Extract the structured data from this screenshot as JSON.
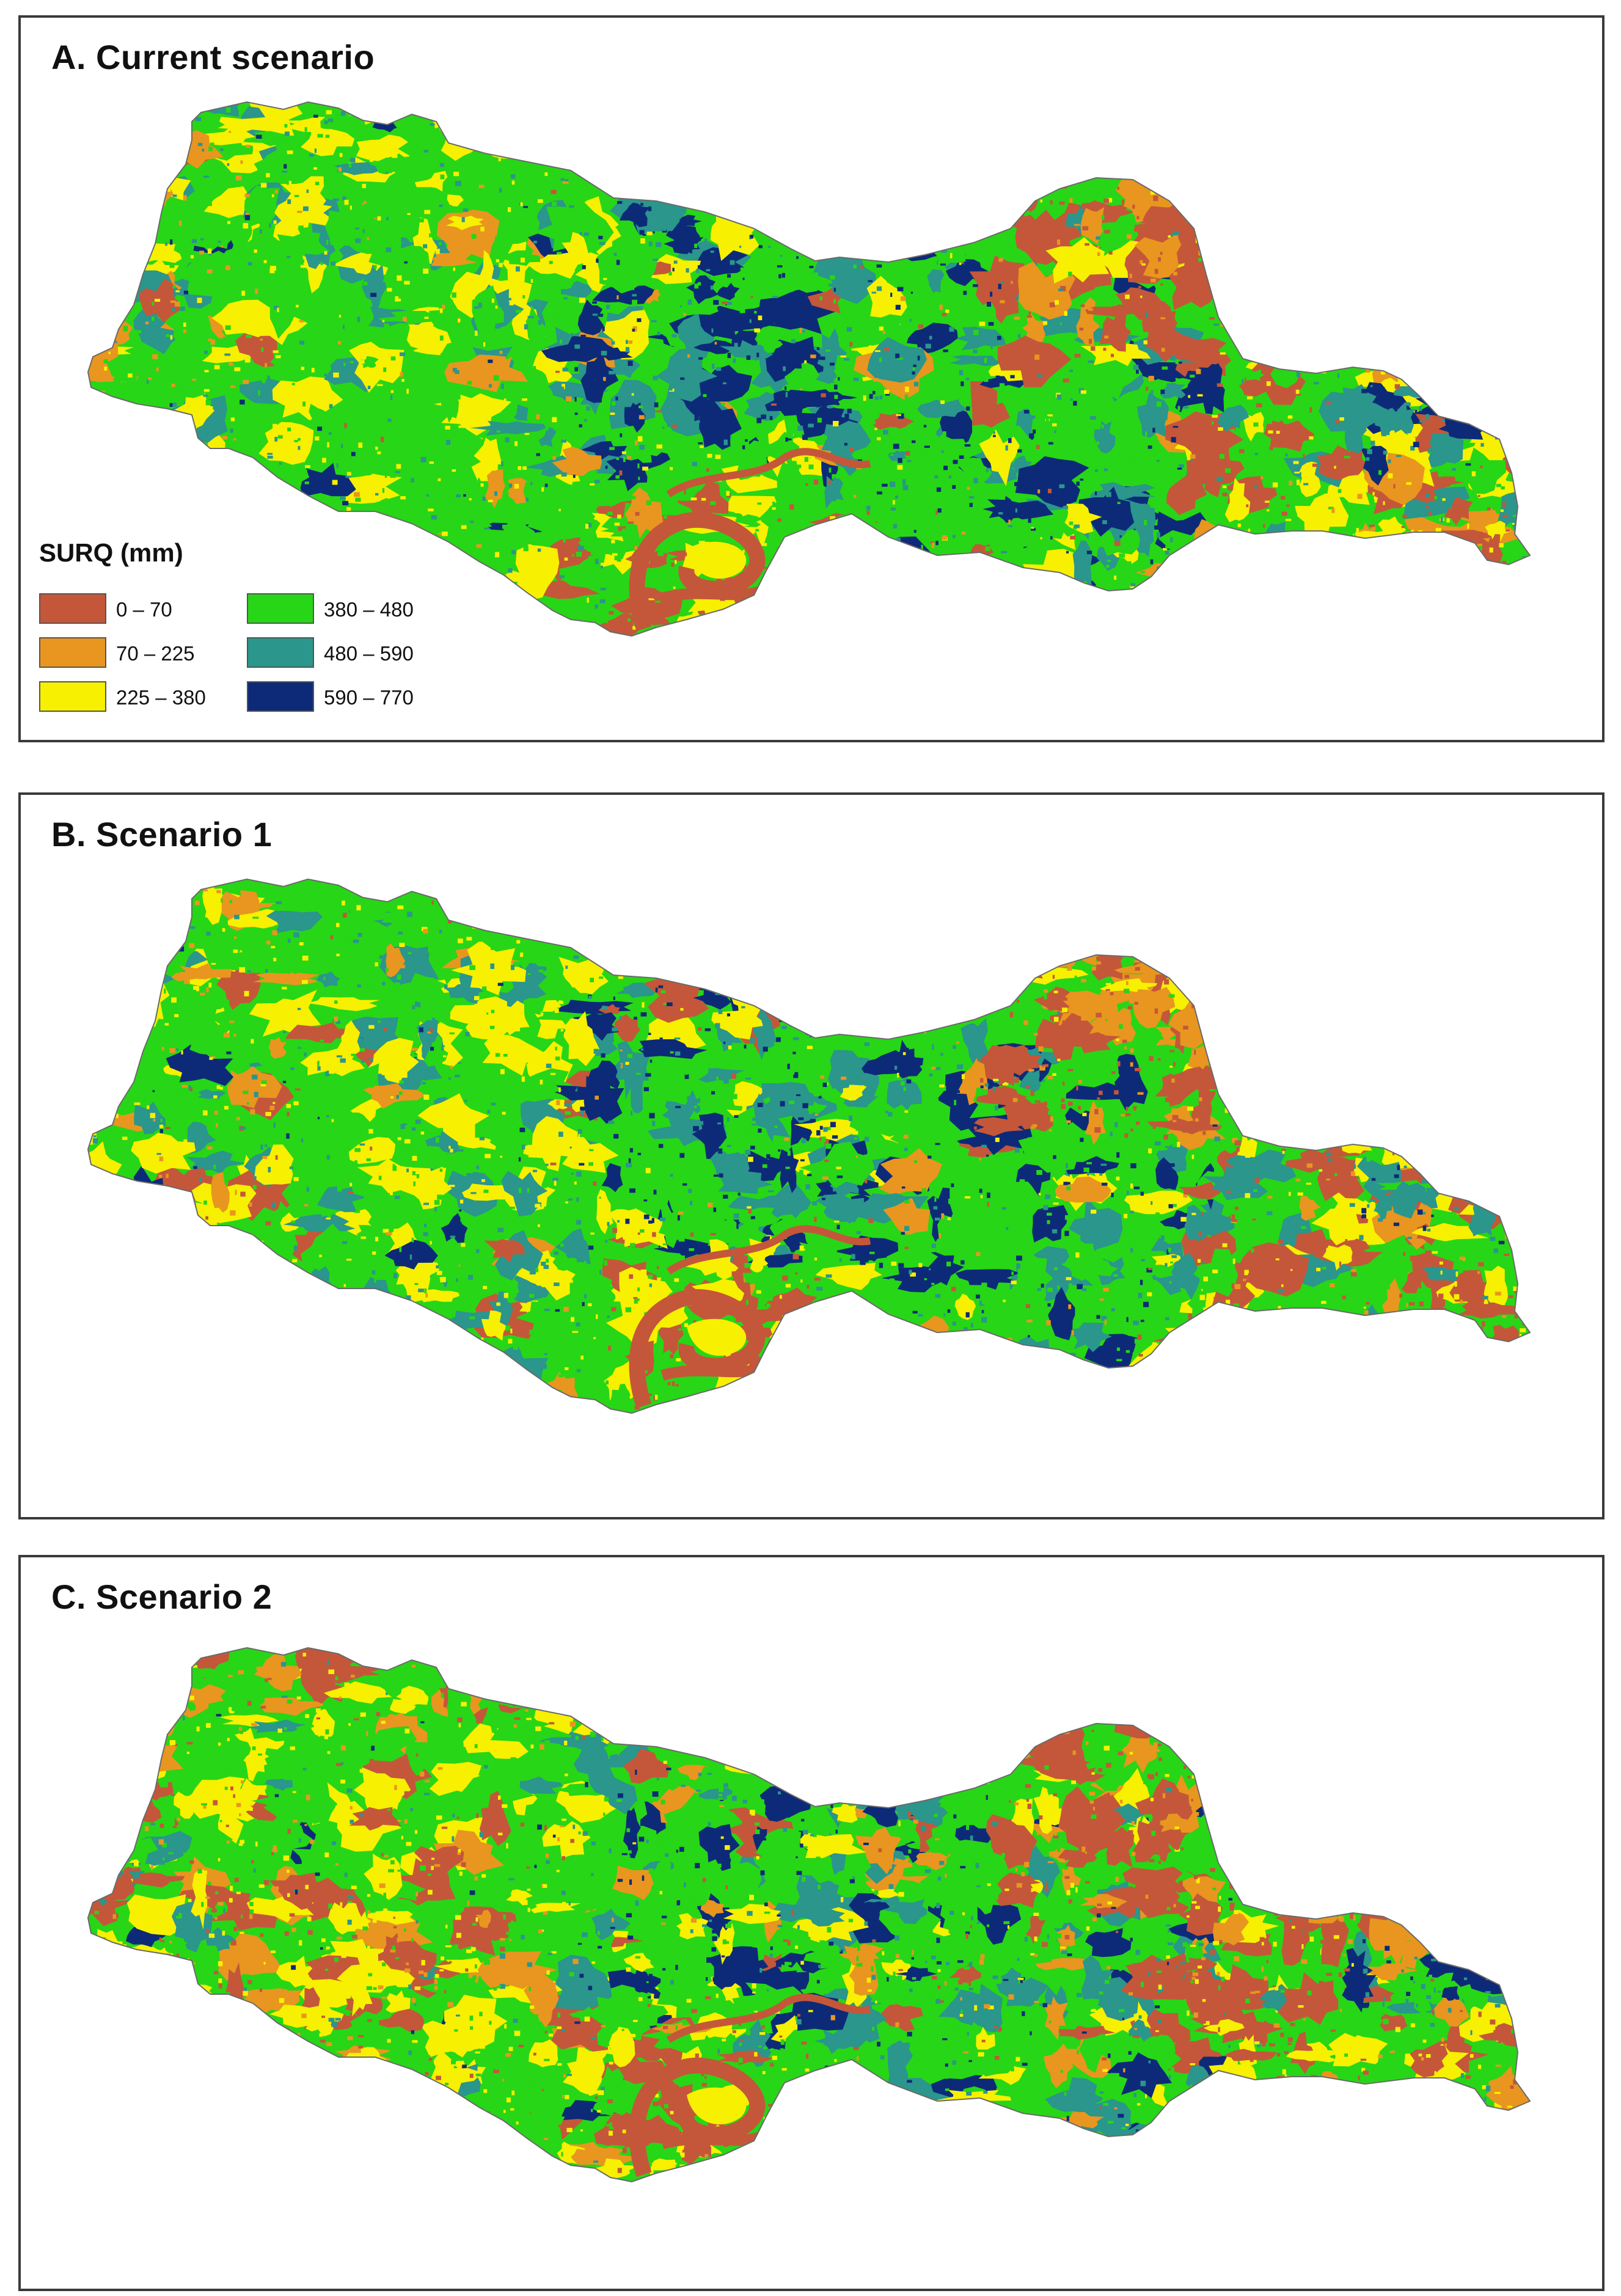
{
  "panels": [
    {
      "id": "A",
      "title": "A. Current scenario"
    },
    {
      "id": "B",
      "title": "B. Scenario 1"
    },
    {
      "id": "C",
      "title": "C. Scenario 2"
    }
  ],
  "legend": {
    "title": "SURQ (mm)",
    "items": [
      {
        "label": "0 – 70",
        "color": "#c4573a"
      },
      {
        "label": "70 – 225",
        "color": "#e8961f"
      },
      {
        "label": "225 – 380",
        "color": "#f7f000"
      },
      {
        "label": "380 – 480",
        "color": "#27d616"
      },
      {
        "label": "480 – 590",
        "color": "#2a968c"
      },
      {
        "label": "590 – 770",
        "color": "#0d2a78"
      }
    ]
  }
}
